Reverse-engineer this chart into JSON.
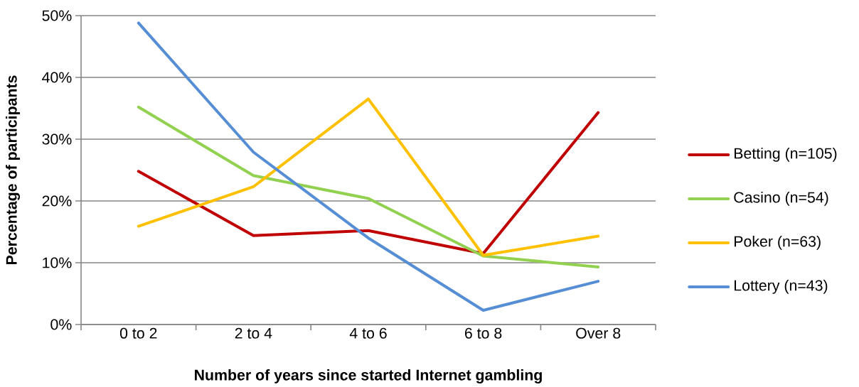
{
  "chart_data": {
    "type": "line",
    "xlabel": "Number of years since started Internet gambling",
    "ylabel": "Percentage of participants",
    "categories": [
      "0 to 2",
      "2 to 4",
      "4 to 6",
      "6 to 8",
      "Over 8"
    ],
    "series": [
      {
        "name": "Betting (n=105)",
        "color": "#c00000",
        "values": [
          24.8,
          14.4,
          15.2,
          11.5,
          34.3
        ]
      },
      {
        "name": "Casino (n=54)",
        "color": "#92d050",
        "values": [
          35.2,
          24.1,
          20.4,
          11.1,
          9.3
        ]
      },
      {
        "name": "Poker (n=63)",
        "color": "#ffc000",
        "values": [
          15.9,
          22.3,
          36.5,
          11.2,
          14.3
        ]
      },
      {
        "name": "Lottery (n=43)",
        "color": "#558ed5",
        "values": [
          48.8,
          27.9,
          14.0,
          2.3,
          7.0
        ]
      }
    ],
    "ylim": [
      0,
      50
    ],
    "yticks": [
      {
        "value": 0,
        "label": "0%"
      },
      {
        "value": 10,
        "label": "10%"
      },
      {
        "value": 20,
        "label": "20%"
      },
      {
        "value": 30,
        "label": "30%"
      },
      {
        "value": 40,
        "label": "40%"
      },
      {
        "value": 50,
        "label": "50%"
      }
    ],
    "grid": "y",
    "legend": "right",
    "line_style": "solid"
  }
}
